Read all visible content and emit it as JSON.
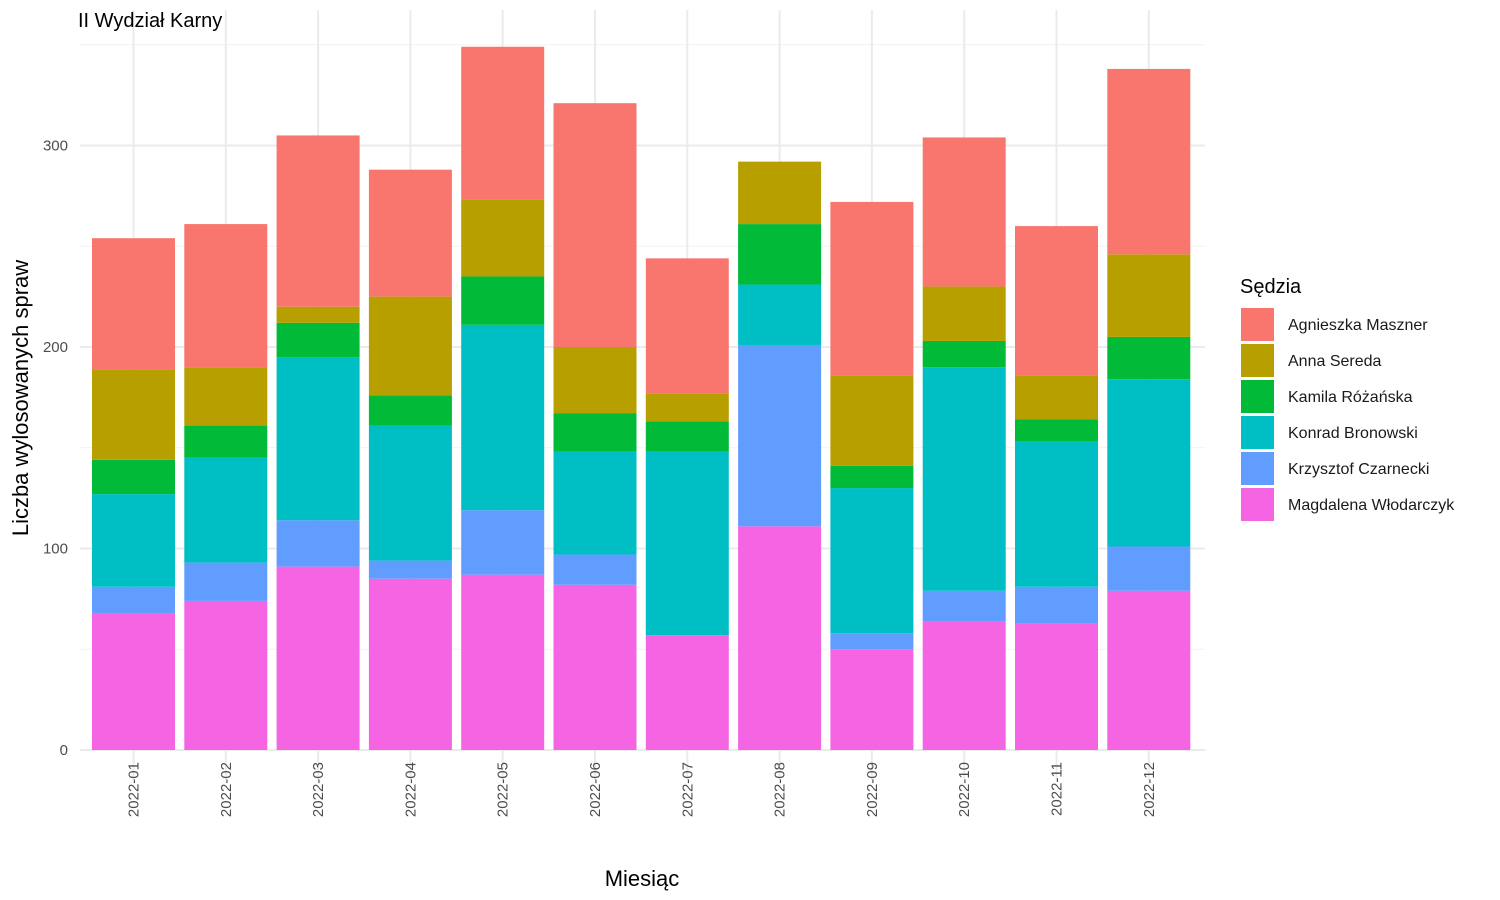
{
  "chart_data": {
    "type": "bar",
    "stacked": true,
    "title": "II Wydział Karny",
    "xlabel": "Miesiąc",
    "ylabel": "Liczba wylosowanych spraw",
    "ylim": [
      0,
      350
    ],
    "yticks": [
      0,
      100,
      200,
      300
    ],
    "grid": true,
    "legend": {
      "title": "Sędzia",
      "placement": "right"
    },
    "categories": [
      "2022-01",
      "2022-02",
      "2022-03",
      "2022-04",
      "2022-05",
      "2022-06",
      "2022-07",
      "2022-08",
      "2022-09",
      "2022-10",
      "2022-11",
      "2022-12"
    ],
    "series": [
      {
        "name": "Agnieszka Maszner",
        "color": "#F8766D",
        "values": [
          65,
          71,
          85,
          63,
          76,
          121,
          67,
          0,
          86,
          74,
          74,
          92
        ]
      },
      {
        "name": "Anna Sereda",
        "color": "#B79F00",
        "values": [
          45,
          29,
          8,
          49,
          38,
          33,
          14,
          31,
          45,
          27,
          22,
          41
        ]
      },
      {
        "name": "Kamila Różańska",
        "color": "#00BA38",
        "values": [
          17,
          16,
          17,
          15,
          24,
          19,
          15,
          30,
          11,
          13,
          11,
          21
        ]
      },
      {
        "name": "Konrad Bronowski",
        "color": "#00BFC4",
        "values": [
          46,
          52,
          81,
          67,
          92,
          51,
          91,
          30,
          72,
          111,
          72,
          83
        ]
      },
      {
        "name": "Krzysztof Czarnecki",
        "color": "#619CFF",
        "values": [
          13,
          19,
          23,
          9,
          32,
          15,
          0,
          90,
          8,
          15,
          18,
          22
        ]
      },
      {
        "name": "Magdalena Włodarczyk",
        "color": "#F564E3",
        "values": [
          68,
          74,
          91,
          85,
          87,
          82,
          57,
          111,
          50,
          64,
          63,
          79
        ]
      }
    ]
  }
}
